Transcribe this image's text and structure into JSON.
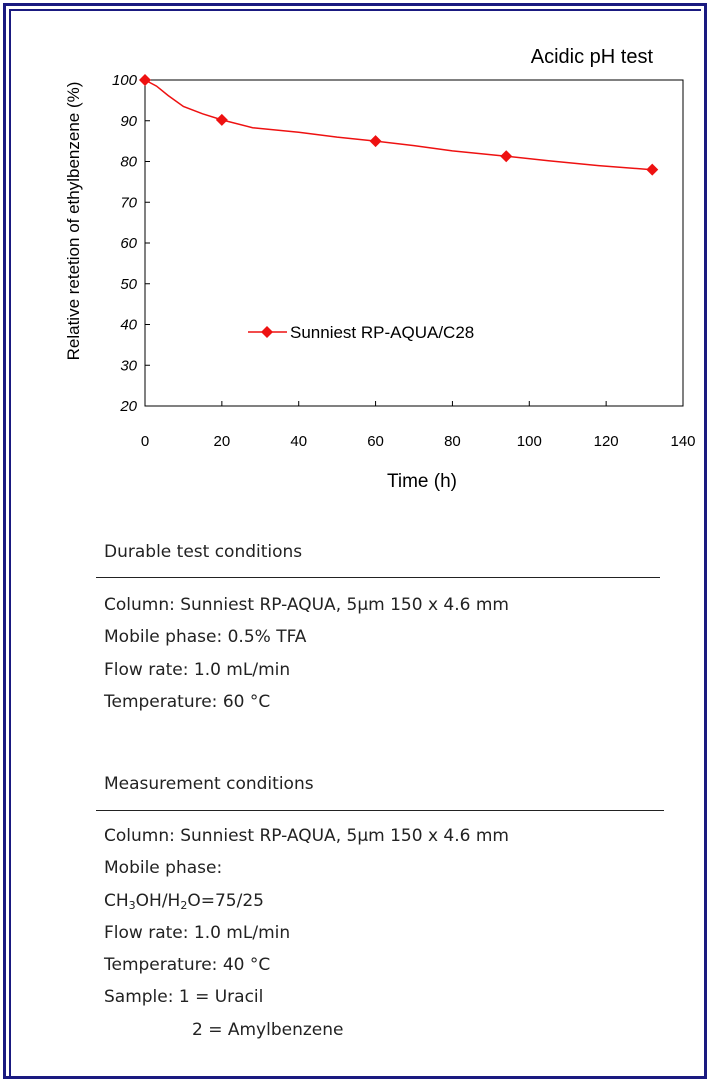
{
  "chart_data": {
    "type": "line",
    "title": "Acidic pH test",
    "xlabel": "Time (h)",
    "ylabel": "Relative retetion of ethylbenzene (%)",
    "xlim": [
      0,
      140
    ],
    "ylim": [
      20,
      100
    ],
    "xticks": [
      0,
      20,
      40,
      60,
      80,
      100,
      120,
      140
    ],
    "yticks": [
      20,
      30,
      40,
      50,
      60,
      70,
      80,
      90,
      100
    ],
    "grid": false,
    "legend": "center-left",
    "series": [
      {
        "name": "Sunniest RP-AQUA/C28",
        "color": "#ee1111",
        "marker": "diamond",
        "points": [
          {
            "x": 0,
            "y": 100
          },
          {
            "x": 20,
            "y": 90.2
          },
          {
            "x": 60,
            "y": 85
          },
          {
            "x": 94,
            "y": 81.3
          },
          {
            "x": 132,
            "y": 78
          }
        ],
        "curve": [
          [
            0,
            100
          ],
          [
            3,
            98.5
          ],
          [
            6,
            96.2
          ],
          [
            10,
            93.5
          ],
          [
            15,
            91.7
          ],
          [
            20,
            90.2
          ],
          [
            28,
            88.3
          ],
          [
            40,
            87.2
          ],
          [
            50,
            86
          ],
          [
            60,
            85
          ],
          [
            70,
            83.9
          ],
          [
            80,
            82.6
          ],
          [
            94,
            81.3
          ],
          [
            105,
            80.2
          ],
          [
            118,
            79
          ],
          [
            132,
            78
          ]
        ]
      }
    ]
  },
  "durable": {
    "title": "Durable test conditions",
    "column": "Column: Sunniest RP-AQUA,  5µm  150 x 4.6 mm",
    "mobile_phase": "Mobile phase: 0.5% TFA",
    "flow_rate": "Flow rate: 1.0 mL/min",
    "temperature": "Temperature: 60 °C"
  },
  "measurement": {
    "title": "Measurement conditions",
    "column": "Column: Sunniest RP-AQUA,  5µm  150 x 4.6 mm",
    "mobile_phase_label": "Mobile phase:",
    "mp_ch": "CH",
    "mp_3": "3",
    "mp_oh": "OH/H",
    "mp_2": "2",
    "mp_rest": "O=75/25",
    "flow_rate": "Flow rate: 1.0 mL/min",
    "temperature": "Temperature: 40 °C",
    "sample_1": "Sample: 1 = Uracil",
    "sample_2": "2 = Amylbenzene"
  },
  "colors": {
    "frame": "#1a1a80",
    "series": "#ee1111",
    "axis": "#000000"
  }
}
